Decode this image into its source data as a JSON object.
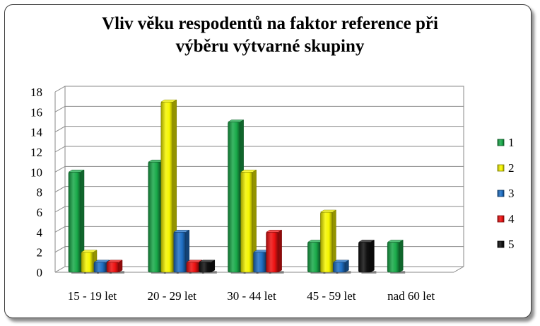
{
  "chart_data": {
    "type": "bar",
    "title_lines": [
      "Vliv věku respodentů na faktor reference při",
      "výběru výtvarné skupiny"
    ],
    "categories": [
      "15 - 19 let",
      "20 - 29 let",
      "30 - 44 let",
      "45 - 59 let",
      "nad 60 let"
    ],
    "series": [
      {
        "name": "1",
        "color": "#1aaa4a",
        "values": [
          10,
          11,
          15,
          3,
          3
        ]
      },
      {
        "name": "2",
        "color": "#f5f500",
        "values": [
          2,
          17,
          10,
          6,
          0
        ]
      },
      {
        "name": "3",
        "color": "#1f6fc4",
        "values": [
          1,
          4,
          2,
          1,
          0
        ]
      },
      {
        "name": "4",
        "color": "#ee1111",
        "values": [
          1,
          1,
          4,
          0,
          0
        ]
      },
      {
        "name": "5",
        "color": "#111111",
        "values": [
          0,
          1,
          0,
          3,
          0
        ]
      }
    ],
    "ylim": [
      0,
      18
    ],
    "yticks": [
      "0",
      "2",
      "4",
      "6",
      "8",
      "10",
      "12",
      "14",
      "16",
      "18"
    ],
    "grid": true,
    "legend_position": "right"
  }
}
